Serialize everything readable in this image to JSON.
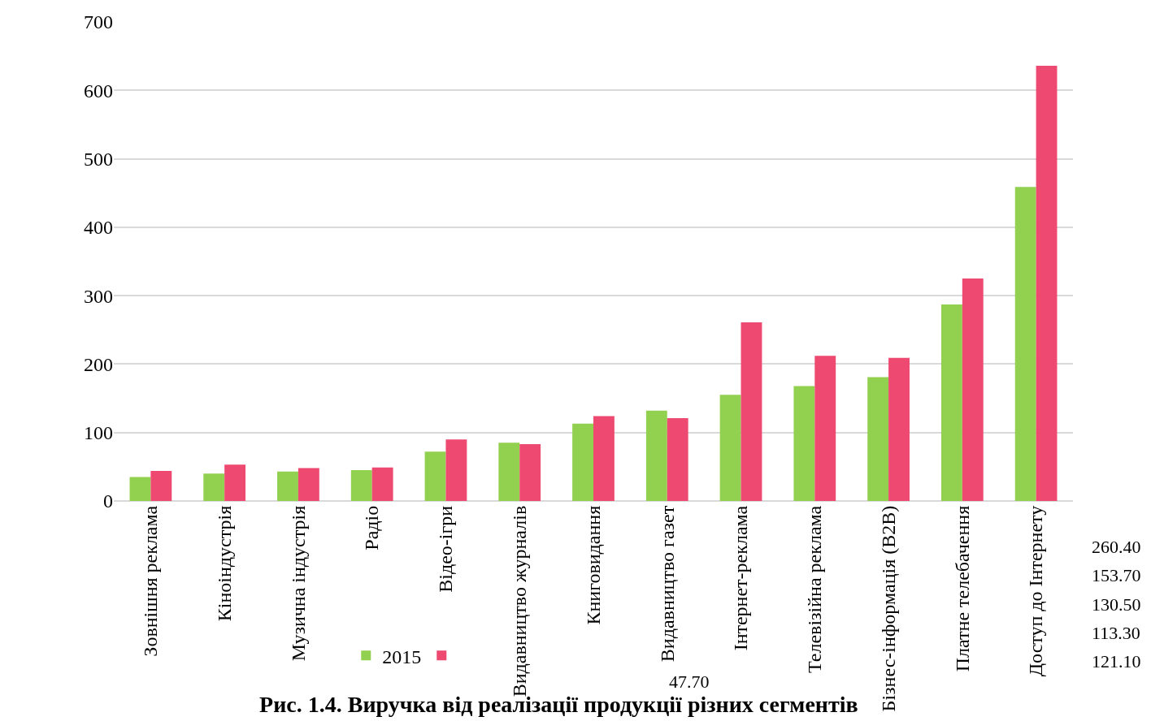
{
  "chart_data": {
    "type": "bar",
    "title": "Рис. 1.4. Виручка від реалізації продукції різних сегментів",
    "categories": [
      "Зовнішня реклама",
      "Кіноіндустрія",
      "Музична індустрія",
      "Радіо",
      "Відео-ігри",
      "Видавництво журналів",
      "Книговидання",
      "Видавництво газет",
      "Інтернет-реклама",
      "Телевізійна реклама",
      "Бізнес-інформація (B2B)",
      "Платне телебачення",
      "Доступ до Інтернету"
    ],
    "series": [
      {
        "name": "2015",
        "color": "#92d050",
        "values": [
          35,
          40,
          43,
          45,
          72,
          85,
          113,
          132,
          155,
          168,
          181,
          287,
          459
        ]
      },
      {
        "color": "#ee4970",
        "values": [
          44,
          53,
          48,
          49,
          90,
          83,
          124,
          121,
          261,
          212,
          209,
          325,
          636
        ]
      }
    ],
    "ylim": [
      0,
      700
    ],
    "yticks": [
      0,
      100,
      200,
      300,
      400,
      500,
      600,
      700
    ],
    "grid": "y",
    "legend": "bottom",
    "annotations": [
      "260.40",
      "153.70",
      "130.50",
      "113.30",
      "121.10",
      "47.70"
    ]
  }
}
